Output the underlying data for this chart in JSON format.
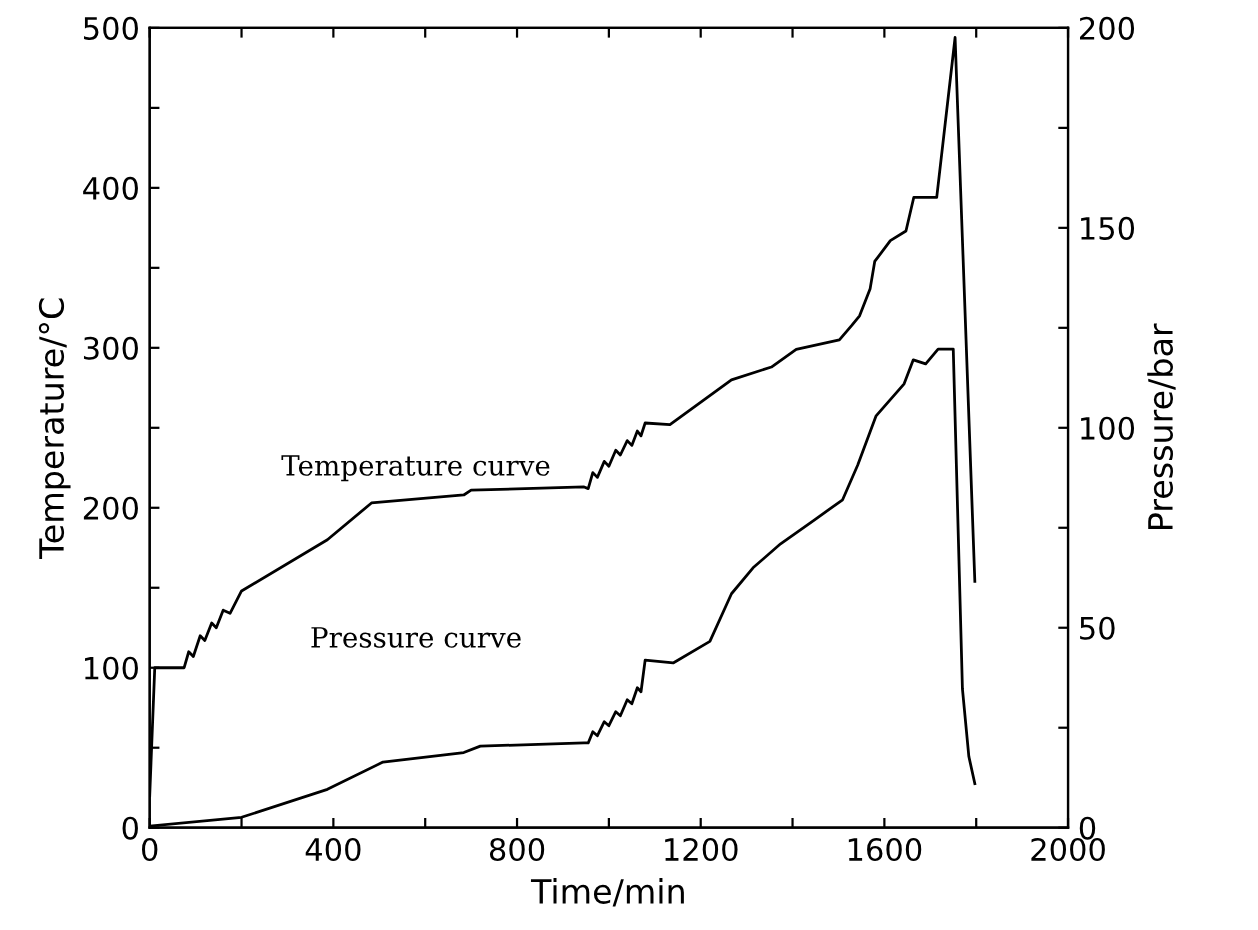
{
  "chart_data": {
    "type": "line",
    "xlabel": "Time/min",
    "ylabel": "Temperature/°C",
    "y2label": "Pressure/bar",
    "xlim": [
      0,
      2000
    ],
    "ylim": [
      0,
      500
    ],
    "y2lim": [
      0,
      200
    ],
    "xticks": [
      0,
      {
        "value": 200,
        "label": null
      },
      400,
      {
        "value": 600,
        "label": null
      },
      800,
      {
        "value": 1000,
        "label": null
      },
      1200,
      {
        "value": 1400,
        "label": null
      },
      1600,
      {
        "value": 1800,
        "label": null
      },
      2000
    ],
    "yticks": [
      0,
      {
        "value": 50,
        "label": null
      },
      100,
      {
        "value": 150,
        "label": null
      },
      200,
      {
        "value": 250,
        "label": null
      },
      300,
      {
        "value": 350,
        "label": null
      },
      400,
      {
        "value": 450,
        "label": null
      },
      500
    ],
    "y2ticks": [
      0,
      {
        "value": 25,
        "label": null
      },
      50,
      {
        "value": 75,
        "label": null
      },
      100,
      {
        "value": 125,
        "label": null
      },
      150,
      {
        "value": 175,
        "label": null
      },
      200
    ],
    "grid": false,
    "legend": false,
    "line_style": "solid",
    "marker": "none",
    "annotations": [
      "Temperature curve",
      "Pressure curve"
    ],
    "series": [
      {
        "color": "#000000",
        "x": [
          0,
          11,
          75,
          85,
          95,
          110,
          120,
          135,
          145,
          160,
          175,
          200,
          387,
          483,
          684,
          700,
          946,
          955,
          965,
          975,
          990,
          1000,
          1015,
          1025,
          1040,
          1050,
          1062,
          1070,
          1079,
          1133,
          1267,
          1354,
          1408,
          1502,
          1529,
          1546,
          1569,
          1579,
          1613,
          1647,
          1664,
          1714,
          1754,
          1797
        ],
        "values": [
          20,
          100,
          100,
          110,
          107,
          120,
          117,
          128,
          125,
          136,
          134,
          148,
          180,
          203,
          208,
          211,
          213,
          212,
          222,
          219,
          229,
          226,
          236,
          233,
          242,
          239,
          248,
          245,
          253,
          252,
          280,
          288,
          299,
          305,
          314,
          320,
          337,
          354,
          367,
          373,
          394,
          394,
          494,
          154
        ]
      },
      {
        "color": "#000000",
        "axis": "y2",
        "x": [
          0,
          200,
          387,
          508,
          684,
          720,
          946,
          955,
          965,
          975,
          990,
          1000,
          1015,
          1025,
          1040,
          1050,
          1062,
          1070,
          1079,
          1140,
          1220,
          1267,
          1314,
          1374,
          1448,
          1509,
          1542,
          1582,
          1643,
          1663,
          1690,
          1717,
          1750,
          1770,
          1784,
          1797
        ],
        "values": [
          0.4,
          2.6,
          9.6,
          16.4,
          18.8,
          20.4,
          21.2,
          21.2,
          24,
          23,
          26.5,
          25.5,
          29,
          28,
          32,
          31,
          35,
          34,
          41.9,
          41.2,
          46.6,
          58.5,
          65,
          71,
          77,
          82,
          90.7,
          103,
          111,
          117,
          116,
          119.7,
          119.7,
          34.7,
          17.8,
          11
        ]
      }
    ]
  }
}
